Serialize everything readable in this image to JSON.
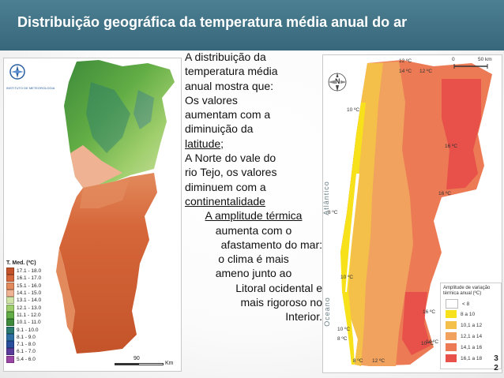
{
  "title": "Distribuição geográfica da temperatura média anual do ar",
  "slide_number": {
    "line1": "3",
    "line2": "2"
  },
  "text": {
    "l1": "A distribuição da",
    "l2": "temperatura média",
    "l3": "anual mostra que:",
    "l4": "Os valores",
    "l5": "aumentam com a",
    "l6": "diminuição da",
    "l7a": "latitude",
    "l7b": ";",
    "l8": "A Norte do vale do",
    "l9": "rio Tejo, os valores",
    "l10": "diminuem com a",
    "l11": "continentalidade",
    "l12": "A amplitude térmica",
    "l13": "aumenta com o",
    "l14": "afastamento do mar:",
    "l15": "o clima é mais",
    "l16": "ameno junto ao",
    "l17": "Litoral ocidental e",
    "l18": "mais rigoroso no",
    "l19": "Interior."
  },
  "left_map": {
    "legend_title": "T. Med. (ºC)",
    "legend": [
      {
        "label": "17.1 - 18.0",
        "color": "#c4532a"
      },
      {
        "label": "16.1 - 17.0",
        "color": "#d6673a"
      },
      {
        "label": "15.1 - 16.0",
        "color": "#e28a5c"
      },
      {
        "label": "14.1 - 15.0",
        "color": "#efb293"
      },
      {
        "label": "13.1 - 14.0",
        "color": "#cfe3a6"
      },
      {
        "label": "12.1 - 13.0",
        "color": "#9fce6c"
      },
      {
        "label": "11.1 - 12.0",
        "color": "#62ad45"
      },
      {
        "label": "10.1 - 11.0",
        "color": "#3c8a3a"
      },
      {
        "label": "9.1 - 10.0",
        "color": "#2a7a72"
      },
      {
        "label": "8.1 - 9.0",
        "color": "#2d6ea3"
      },
      {
        "label": "7.1 - 8.0",
        "color": "#274f9e"
      },
      {
        "label": "6.1 - 7.0",
        "color": "#5a3a9a"
      },
      {
        "label": "5.4 - 6.0",
        "color": "#9b46a6"
      }
    ],
    "scale_value": "90",
    "scale_unit": "Km",
    "logo_caption": "INSTITUTO DE METEOROLOGIA"
  },
  "right_map": {
    "north": "N",
    "scale_zero": "0",
    "scale_label": "50 km",
    "ocean": "Oceano",
    "atlantic": "Atlântico",
    "isotherms": [
      "12 ºC",
      "14 ºC",
      "12 ºC",
      "10 ºC",
      "16 ºC",
      "16 ºC",
      "8 ºC",
      "10 ºC",
      "10 ºC",
      "16 ºC",
      "10 ºC",
      "8 ºC",
      "14 ºC",
      "8 ºC",
      "12 ºC"
    ],
    "legend_title": "Amplitude de variação térmica anual (ºC)",
    "legend": [
      {
        "label": "< 8",
        "color": "#ffffff"
      },
      {
        "label": "8 a 10",
        "color": "#f7e11a"
      },
      {
        "label": "10,1 a 12",
        "color": "#f5c04a"
      },
      {
        "label": "12,1 a 14",
        "color": "#f0a25e"
      },
      {
        "label": "14,1 a 16",
        "color": "#ec7a55"
      },
      {
        "label": "16,1 a 18",
        "color": "#e8504a"
      }
    ]
  }
}
